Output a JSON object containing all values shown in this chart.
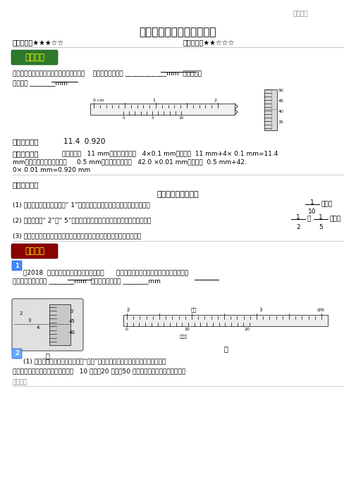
{
  "title": "电学实验仪器的使用与读数",
  "top_right": "感谢聊听",
  "freq_label": "高考频度：★★★☆☆",
  "diff_label": "难易程度：★★☆☆☆",
  "section1_badge": "典例在线",
  "section1_badge_color": "#2d7a2d",
  "section1_text1": "读出下图中游标卡尺和螺旋测微器的读数，    游标卡尺的读数为 _____________mm  螺旋测微器",
  "section1_text2": "的读数为 ________mm",
  "answer_label": "【参考答案】",
  "answer_text": "11.4  0.920",
  "analysis_label": "【试题解析】",
  "analysis_text1": "主尺读数为   11 mm，游标尺读数为   4×0.1 mm，读数为  11 mm+4× 0.1 mm=11.4",
  "analysis_text2": "mm，螺旋测微器主尺读数为     0.5 mm，可动刻度示数为   42.0 ×0.01 mm，读数为  0.5 mm+42.",
  "analysis_text3": "0× 0.01 mm=0.920 mm",
  "knowledge_label": "【知识补给】",
  "knowledge_title": "实验仪器的读数方法",
  "knowledge_1": "(1) 十分之一法：最小分度是“ 1”的电表，测量误差出现在下一位，下一位按",
  "knowledge_2": "(2) 最小分度是“ 2”或“ 5”的电表，测量误差出现在同一位，同一位分别按",
  "knowledge_3": "(3) 欧姆表只是粗略测量电阱，误差较大，一般不估读，一定要乘以倍率。",
  "section2_badge": "学霹推荐",
  "section2_badge_color": "#8B0000",
  "section2_intro": "（2018  山东省烟台市高三期末自主练习）      读出下图中螺旋测微器和游标卡尺的读数。",
  "section2_text1": "螺旋测微器的读数为 ________mm  游标卡尺的读数为 ________mm",
  "bottom_note1": "(1) 新式游标卡尺的刻线看起来很“稀疏”，使得读数显得清晰明了，便于使用者正",
  "bottom_note2": "确读取数据。通常游标卡尺的刻度有   10 分度、20 分度、50 分度三种规格；新式游标卡尺也",
  "bottom_note3": "感谢聊听"
}
